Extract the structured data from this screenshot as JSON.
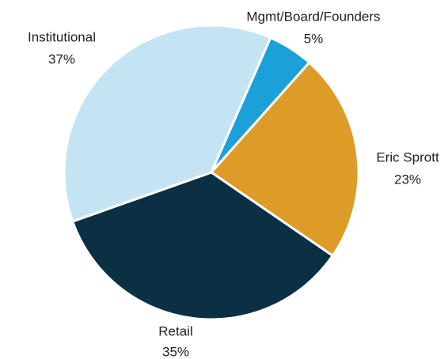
{
  "chart_data": {
    "type": "pie",
    "categories": [
      "Mgmt/Board/Founders",
      "Eric Sprott",
      "Retail",
      "Institutional"
    ],
    "values": [
      5,
      23,
      35,
      37
    ],
    "value_labels": [
      "5%",
      "23%",
      "35%",
      "37%"
    ],
    "colors": [
      "#1ba1d8",
      "#dd9c27",
      "#0b3044",
      "#c4e4f4"
    ]
  }
}
